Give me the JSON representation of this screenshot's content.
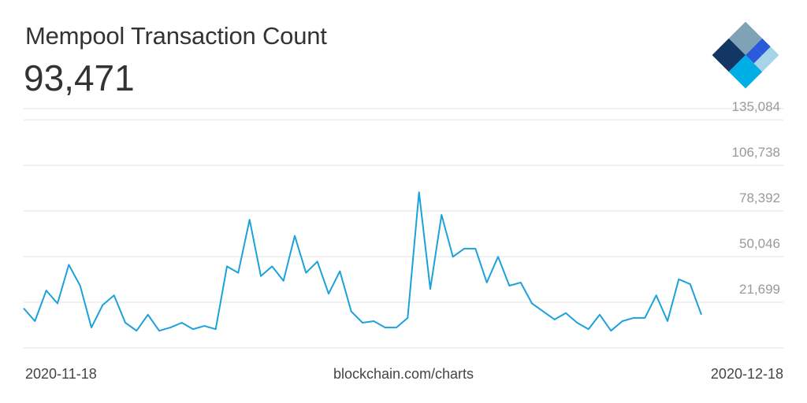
{
  "header": {
    "title": "Mempool Transaction Count",
    "current_value": "93,471"
  },
  "logo": {
    "icon": "blockchain-logo-icon",
    "colors": [
      "#123765",
      "#2a5ada",
      "#7fa2b4",
      "#a7d4e8",
      "#00aee6"
    ]
  },
  "footer": {
    "start_date": "2020-11-18",
    "source": "blockchain.com/charts",
    "end_date": "2020-12-18"
  },
  "chart_data": {
    "type": "line",
    "title": "Mempool Transaction Count",
    "xlabel": "",
    "ylabel": "",
    "color": "#1da1db",
    "grid": true,
    "xlim": [
      "2020-11-18",
      "2020-12-18"
    ],
    "ylim": [
      -6647,
      142000
    ],
    "yticks": [
      21699,
      50046,
      78392,
      106738,
      135084
    ],
    "ytick_labels": [
      "21,699",
      "50,046",
      "78,392",
      "106,738",
      "135,084"
    ],
    "x": [
      "2020-11-18T00:00",
      "2020-11-18T12:00",
      "2020-11-19T00:00",
      "2020-11-19T12:00",
      "2020-11-20T00:00",
      "2020-11-20T12:00",
      "2020-11-21T00:00",
      "2020-11-21T12:00",
      "2020-11-22T00:00",
      "2020-11-22T12:00",
      "2020-11-23T00:00",
      "2020-11-23T12:00",
      "2020-11-24T00:00",
      "2020-11-24T12:00",
      "2020-11-25T00:00",
      "2020-11-25T12:00",
      "2020-11-26T00:00",
      "2020-11-26T12:00",
      "2020-11-27T00:00",
      "2020-11-27T12:00",
      "2020-11-28T00:00",
      "2020-11-28T12:00",
      "2020-11-29T00:00",
      "2020-11-29T12:00",
      "2020-11-30T00:00",
      "2020-11-30T12:00",
      "2020-12-01T00:00",
      "2020-12-01T12:00",
      "2020-12-02T00:00",
      "2020-12-02T12:00",
      "2020-12-03T00:00",
      "2020-12-03T12:00",
      "2020-12-04T00:00",
      "2020-12-04T12:00",
      "2020-12-05T00:00",
      "2020-12-05T12:00",
      "2020-12-06T00:00",
      "2020-12-06T12:00",
      "2020-12-07T00:00",
      "2020-12-07T12:00",
      "2020-12-08T00:00",
      "2020-12-08T12:00",
      "2020-12-09T00:00",
      "2020-12-09T12:00",
      "2020-12-10T00:00",
      "2020-12-10T12:00",
      "2020-12-11T00:00",
      "2020-12-11T12:00",
      "2020-12-12T00:00",
      "2020-12-12T12:00",
      "2020-12-13T00:00",
      "2020-12-13T12:00",
      "2020-12-14T00:00",
      "2020-12-14T12:00",
      "2020-12-15T00:00",
      "2020-12-15T12:00",
      "2020-12-16T00:00",
      "2020-12-16T12:00",
      "2020-12-17T00:00",
      "2020-12-17T12:00",
      "2020-12-18T00:00"
    ],
    "series": [
      {
        "values": [
          18000,
          10000,
          29000,
          21000,
          45000,
          32000,
          6000,
          20000,
          26000,
          9000,
          4000,
          14000,
          4000,
          6000,
          9000,
          5000,
          7000,
          5000,
          44000,
          40000,
          73000,
          38000,
          44000,
          35000,
          63000,
          40000,
          47000,
          27000,
          41000,
          16000,
          9000,
          10000,
          6000,
          6000,
          12000,
          90000,
          30000,
          76000,
          50000,
          55000,
          55000,
          34000,
          50000,
          32000,
          34000,
          21000,
          16000,
          11000,
          15000,
          9000,
          5000,
          14000,
          4000,
          10000,
          12000,
          12000,
          26000,
          10000,
          36000,
          33000,
          14000
        ]
      }
    ]
  }
}
